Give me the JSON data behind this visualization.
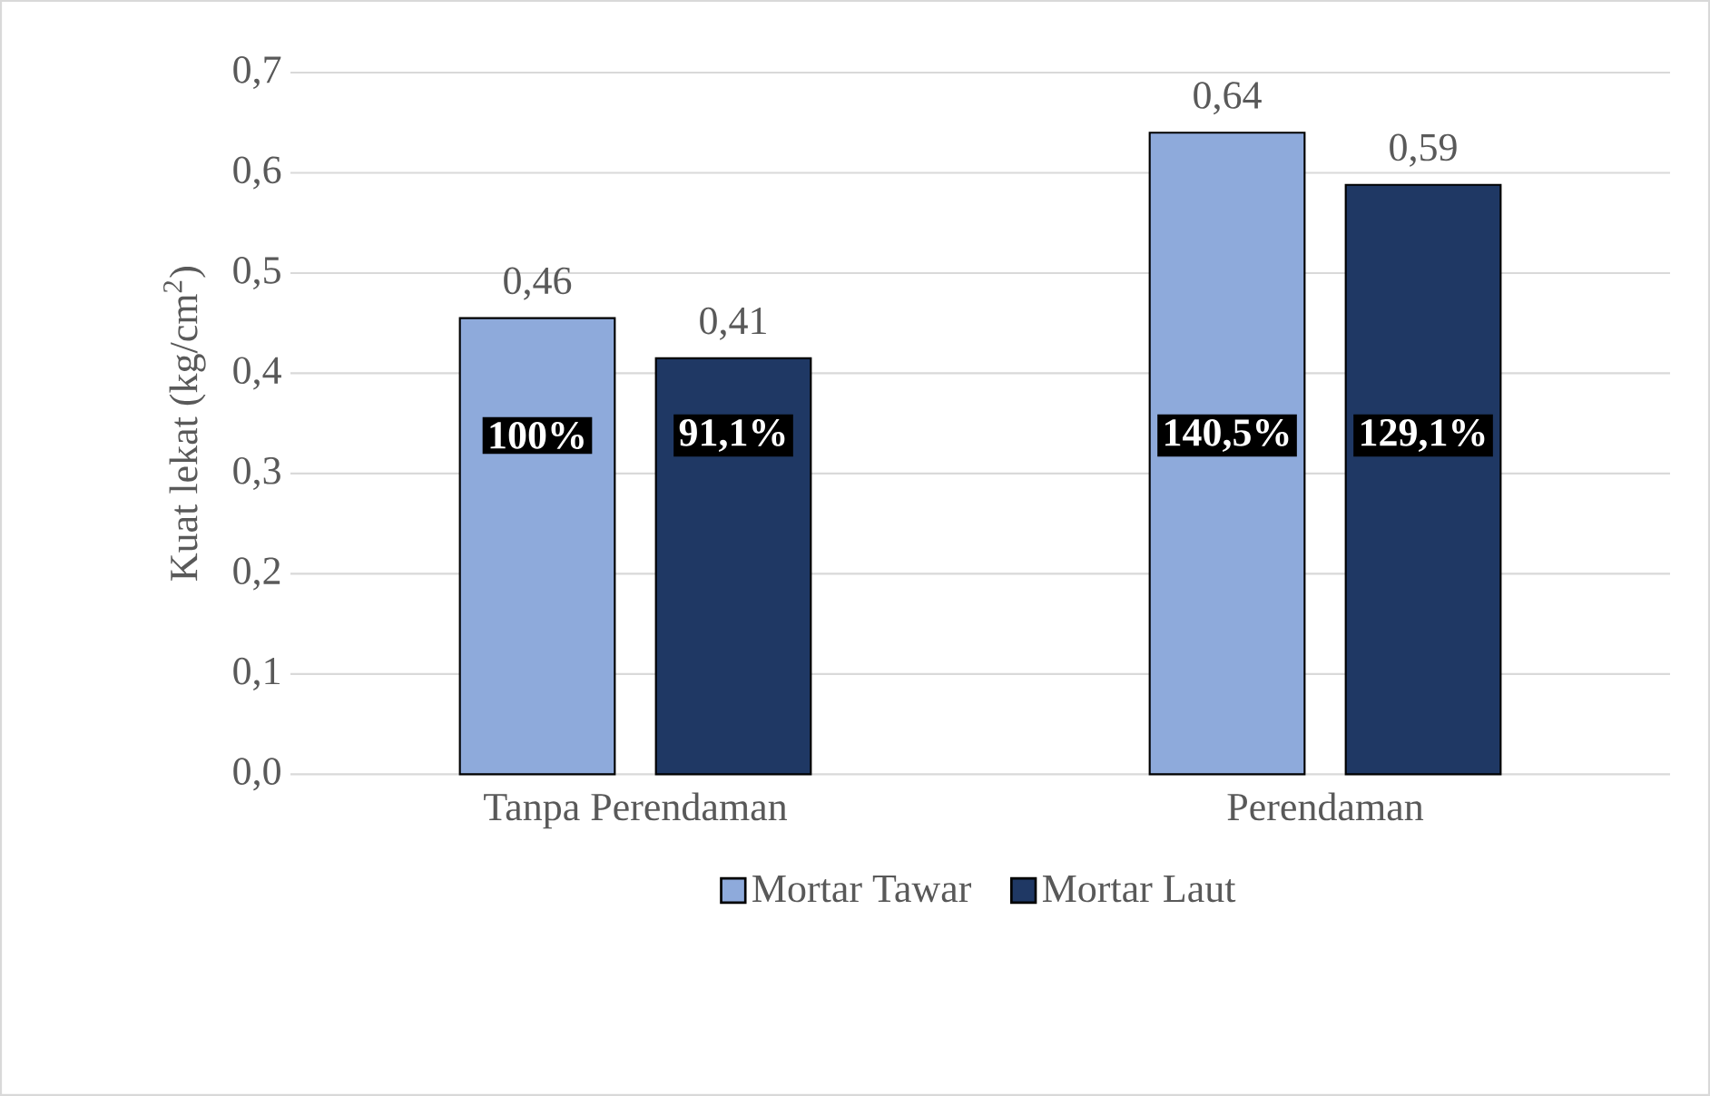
{
  "chart_data": {
    "type": "bar",
    "categories": [
      "Tanpa Perendaman",
      "Perendaman"
    ],
    "ylabel": "Kuat lekat (kg/cm$^{2}$)",
    "series": [
      {
        "name": "Mortar Tawar",
        "color": "#8eaadb",
        "values": [
          0.455,
          0.64
        ],
        "value_labels": [
          "0,46",
          "0,64"
        ]
      },
      {
        "name": "Mortar Laut",
        "color": "#1f3864",
        "values": [
          0.415,
          0.588
        ],
        "value_labels": [
          "0,41",
          "0,59"
        ]
      }
    ],
    "ylim": [
      0,
      0.7
    ],
    "yticks": [
      {
        "value": 0,
        "label": "0,0"
      },
      {
        "value": 0.1,
        "label": "0,1"
      },
      {
        "value": 0.2,
        "label": "0,2"
      },
      {
        "value": 0.3,
        "label": "0,3"
      },
      {
        "value": 0.4,
        "label": "0,4"
      },
      {
        "value": 0.5,
        "label": "0,5"
      },
      {
        "value": 0.6,
        "label": "0,6"
      },
      {
        "value": 0.7,
        "label": "0,7"
      }
    ],
    "grid": "y",
    "legend": "bottom",
    "annotations": [
      "100%",
      "91,1%",
      "140,5%",
      "129,1%"
    ]
  }
}
